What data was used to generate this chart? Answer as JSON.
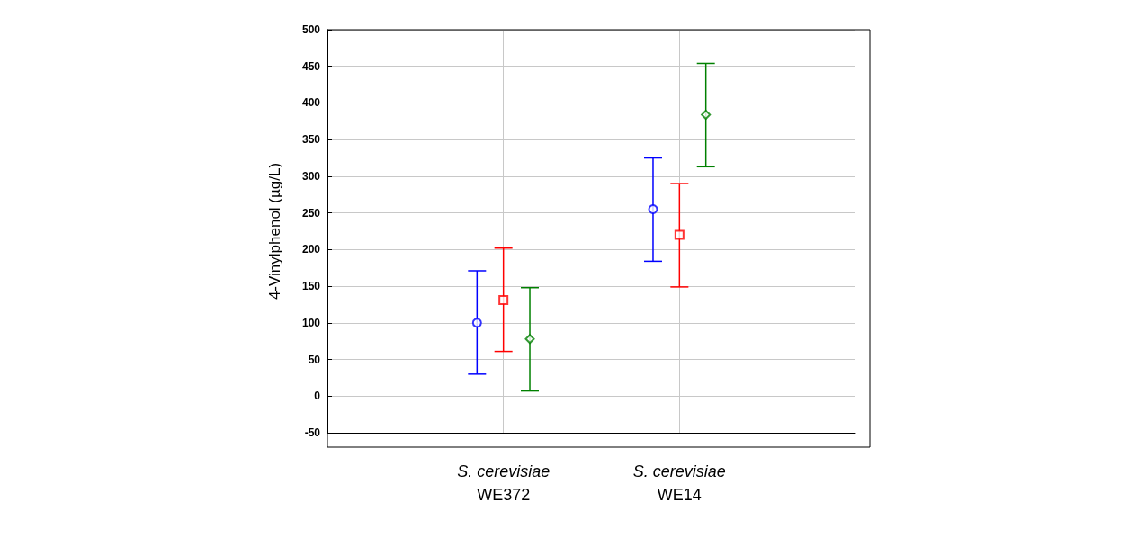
{
  "chart_data": {
    "type": "scatter",
    "ylabel": "4-Vinylphenol (µg/L)",
    "categories": [
      "S. cerevisiae\nWE372",
      "S. cerevisiae\nWE14"
    ],
    "ylim": [
      -50,
      500
    ],
    "yticks": [
      -50,
      0,
      50,
      100,
      150,
      200,
      250,
      300,
      350,
      400,
      450,
      500
    ],
    "grid": true,
    "series": [
      {
        "color": "#0000ff",
        "marker": "circle",
        "values": [
          100,
          255
        ],
        "errors": [
          [
            30,
            171
          ],
          [
            184,
            325
          ]
        ]
      },
      {
        "color": "#ff0000",
        "marker": "square",
        "values": [
          131,
          220
        ],
        "errors": [
          [
            61,
            202
          ],
          [
            149,
            290
          ]
        ]
      },
      {
        "color": "#008000",
        "marker": "diamond",
        "values": [
          78,
          384
        ],
        "errors": [
          [
            7,
            148
          ],
          [
            313,
            454
          ]
        ]
      }
    ]
  }
}
